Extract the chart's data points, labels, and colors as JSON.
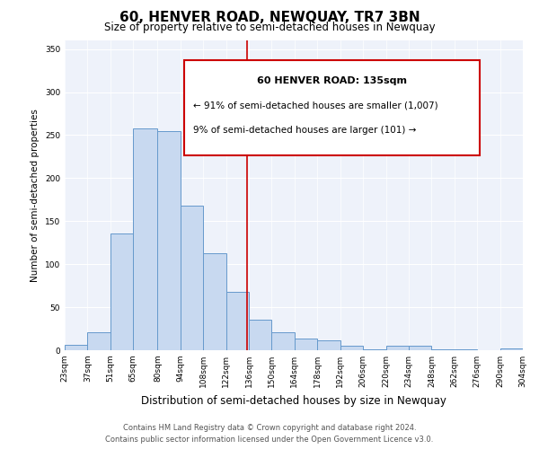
{
  "title": "60, HENVER ROAD, NEWQUAY, TR7 3BN",
  "subtitle": "Size of property relative to semi-detached houses in Newquay",
  "xlabel": "Distribution of semi-detached houses by size in Newquay",
  "ylabel": "Number of semi-detached properties",
  "bin_labels": [
    "23sqm",
    "37sqm",
    "51sqm",
    "65sqm",
    "80sqm",
    "94sqm",
    "108sqm",
    "122sqm",
    "136sqm",
    "150sqm",
    "164sqm",
    "178sqm",
    "192sqm",
    "206sqm",
    "220sqm",
    "234sqm",
    "248sqm",
    "262sqm",
    "276sqm",
    "290sqm",
    "304sqm"
  ],
  "bar_values": [
    6,
    21,
    136,
    258,
    255,
    168,
    113,
    68,
    35,
    21,
    14,
    11,
    5,
    1,
    5,
    5,
    1,
    1,
    0,
    2
  ],
  "bin_edges": [
    23,
    37,
    51,
    65,
    80,
    94,
    108,
    122,
    136,
    150,
    164,
    178,
    192,
    206,
    220,
    234,
    248,
    262,
    276,
    290,
    304
  ],
  "bar_color": "#c8d9f0",
  "bar_edge_color": "#6699cc",
  "vline_x": 135,
  "vline_color": "#cc0000",
  "annotation_box_title": "60 HENVER ROAD: 135sqm",
  "annotation_line1": "← 91% of semi-detached houses are smaller (1,007)",
  "annotation_line2": "9% of semi-detached houses are larger (101) →",
  "annotation_box_color": "#cc0000",
  "annotation_text_color": "#000000",
  "ylim": [
    0,
    360
  ],
  "yticks": [
    0,
    50,
    100,
    150,
    200,
    250,
    300,
    350
  ],
  "bg_color": "#eef2fa",
  "footer_line1": "Contains HM Land Registry data © Crown copyright and database right 2024.",
  "footer_line2": "Contains public sector information licensed under the Open Government Licence v3.0.",
  "title_fontsize": 11,
  "subtitle_fontsize": 8.5,
  "xlabel_fontsize": 8.5,
  "ylabel_fontsize": 7.5,
  "tick_fontsize": 6.5,
  "footer_fontsize": 6
}
